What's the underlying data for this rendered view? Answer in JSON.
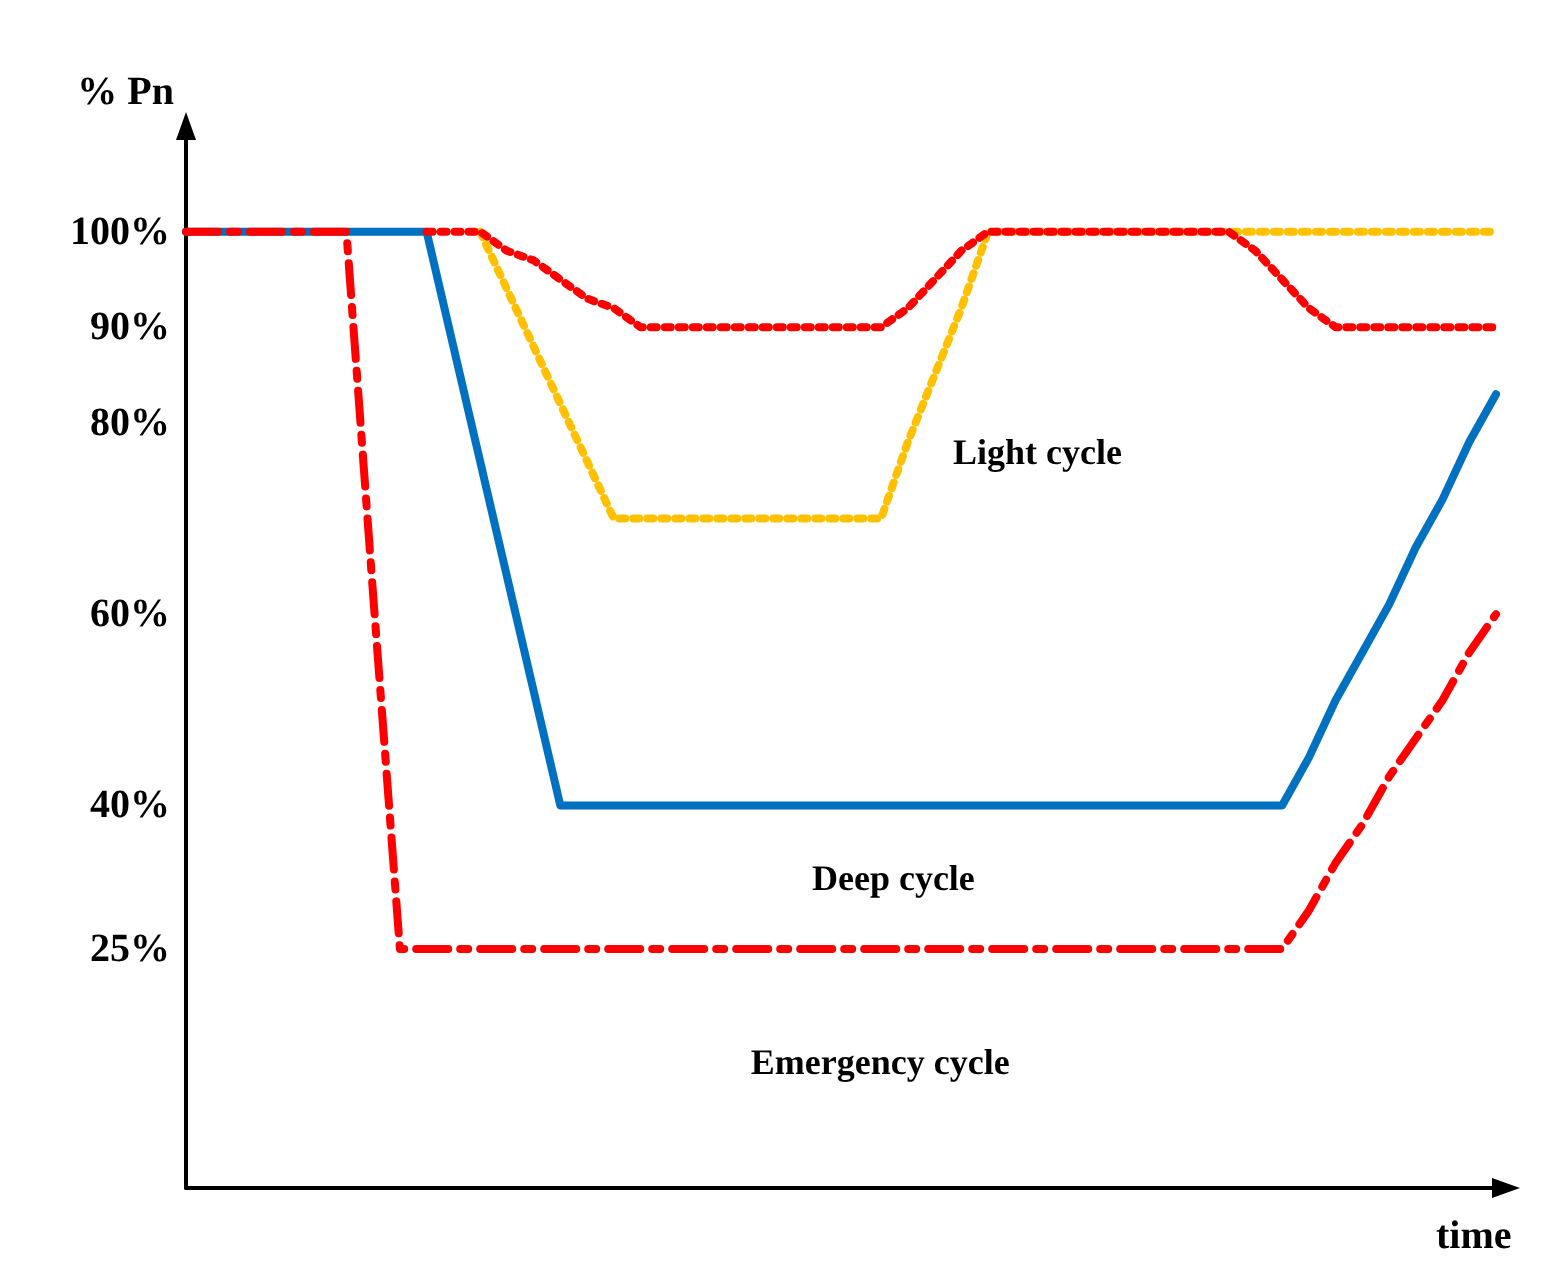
{
  "chart_data": {
    "type": "line",
    "ylabel": "% Pn",
    "xlabel": "time",
    "ylim": [
      0,
      110
    ],
    "categories": [
      null,
      null,
      null,
      null,
      null,
      null,
      null,
      null,
      null,
      null,
      null,
      null,
      null,
      null,
      null,
      null,
      null,
      null,
      null,
      null,
      null,
      null,
      null,
      null,
      null,
      null,
      null,
      null,
      null,
      null,
      null,
      null,
      null,
      null,
      null,
      null,
      null,
      null,
      null,
      null,
      null,
      null,
      null,
      null,
      null,
      null,
      null,
      null,
      null,
      null
    ],
    "yticks": [
      {
        "value": 25,
        "label": "25%"
      },
      {
        "value": 40,
        "label": "40%"
      },
      {
        "value": 60,
        "label": "60%"
      },
      {
        "value": 80,
        "label": "80%"
      },
      {
        "value": 90,
        "label": "90%"
      },
      {
        "value": 100,
        "label": "100%"
      }
    ],
    "tick_labels": "y",
    "grid": false,
    "marker": "none",
    "series": [
      {
        "color": "#0070c0",
        "line_style": "solid",
        "values": [
          100,
          100,
          100,
          100,
          100,
          100,
          100,
          100,
          100,
          100,
          88,
          76,
          64,
          52,
          40,
          40,
          40,
          40,
          40,
          40,
          40,
          40,
          40,
          40,
          40,
          40,
          40,
          40,
          40,
          40,
          40,
          40,
          40,
          40,
          40,
          40,
          40,
          40,
          40,
          40,
          40,
          40,
          45,
          51,
          56,
          61,
          67,
          72,
          78,
          83
        ]
      },
      {
        "color": "#ff0000",
        "line_style": "dashed",
        "values": [
          100,
          100,
          100,
          100,
          100,
          100,
          100,
          62,
          25,
          25,
          25,
          25,
          25,
          25,
          25,
          25,
          25,
          25,
          25,
          25,
          25,
          25,
          25,
          25,
          25,
          25,
          25,
          25,
          25,
          25,
          25,
          25,
          25,
          25,
          25,
          25,
          25,
          25,
          25,
          25,
          25,
          25,
          29,
          34,
          38,
          43,
          47,
          51,
          56,
          60
        ]
      },
      {
        "color": "#ffc000",
        "line_style": "dotted",
        "values": [
          null,
          null,
          null,
          null,
          null,
          null,
          null,
          null,
          null,
          null,
          null,
          100,
          94,
          88,
          82,
          76,
          70,
          70,
          70,
          70,
          70,
          70,
          70,
          70,
          70,
          70,
          70,
          78,
          85,
          92,
          100,
          100,
          100,
          100,
          100,
          100,
          100,
          100,
          100,
          100,
          100,
          100,
          100,
          100,
          100,
          100,
          100,
          100,
          100,
          100
        ]
      },
      {
        "color": "#ff0000",
        "line_style": "dotted",
        "values": [
          null,
          null,
          null,
          null,
          null,
          null,
          null,
          null,
          null,
          100,
          100,
          100,
          98,
          97,
          95,
          93,
          92,
          90,
          90,
          90,
          90,
          90,
          90,
          90,
          90,
          90,
          90,
          92,
          95,
          98,
          100,
          100,
          100,
          100,
          100,
          100,
          100,
          100,
          100,
          100,
          98,
          95,
          92,
          90,
          90,
          90,
          90,
          90,
          90,
          90
        ]
      }
    ],
    "annotations": [
      "Light cycle",
      "Deep cycle",
      "Emergency cycle"
    ]
  }
}
